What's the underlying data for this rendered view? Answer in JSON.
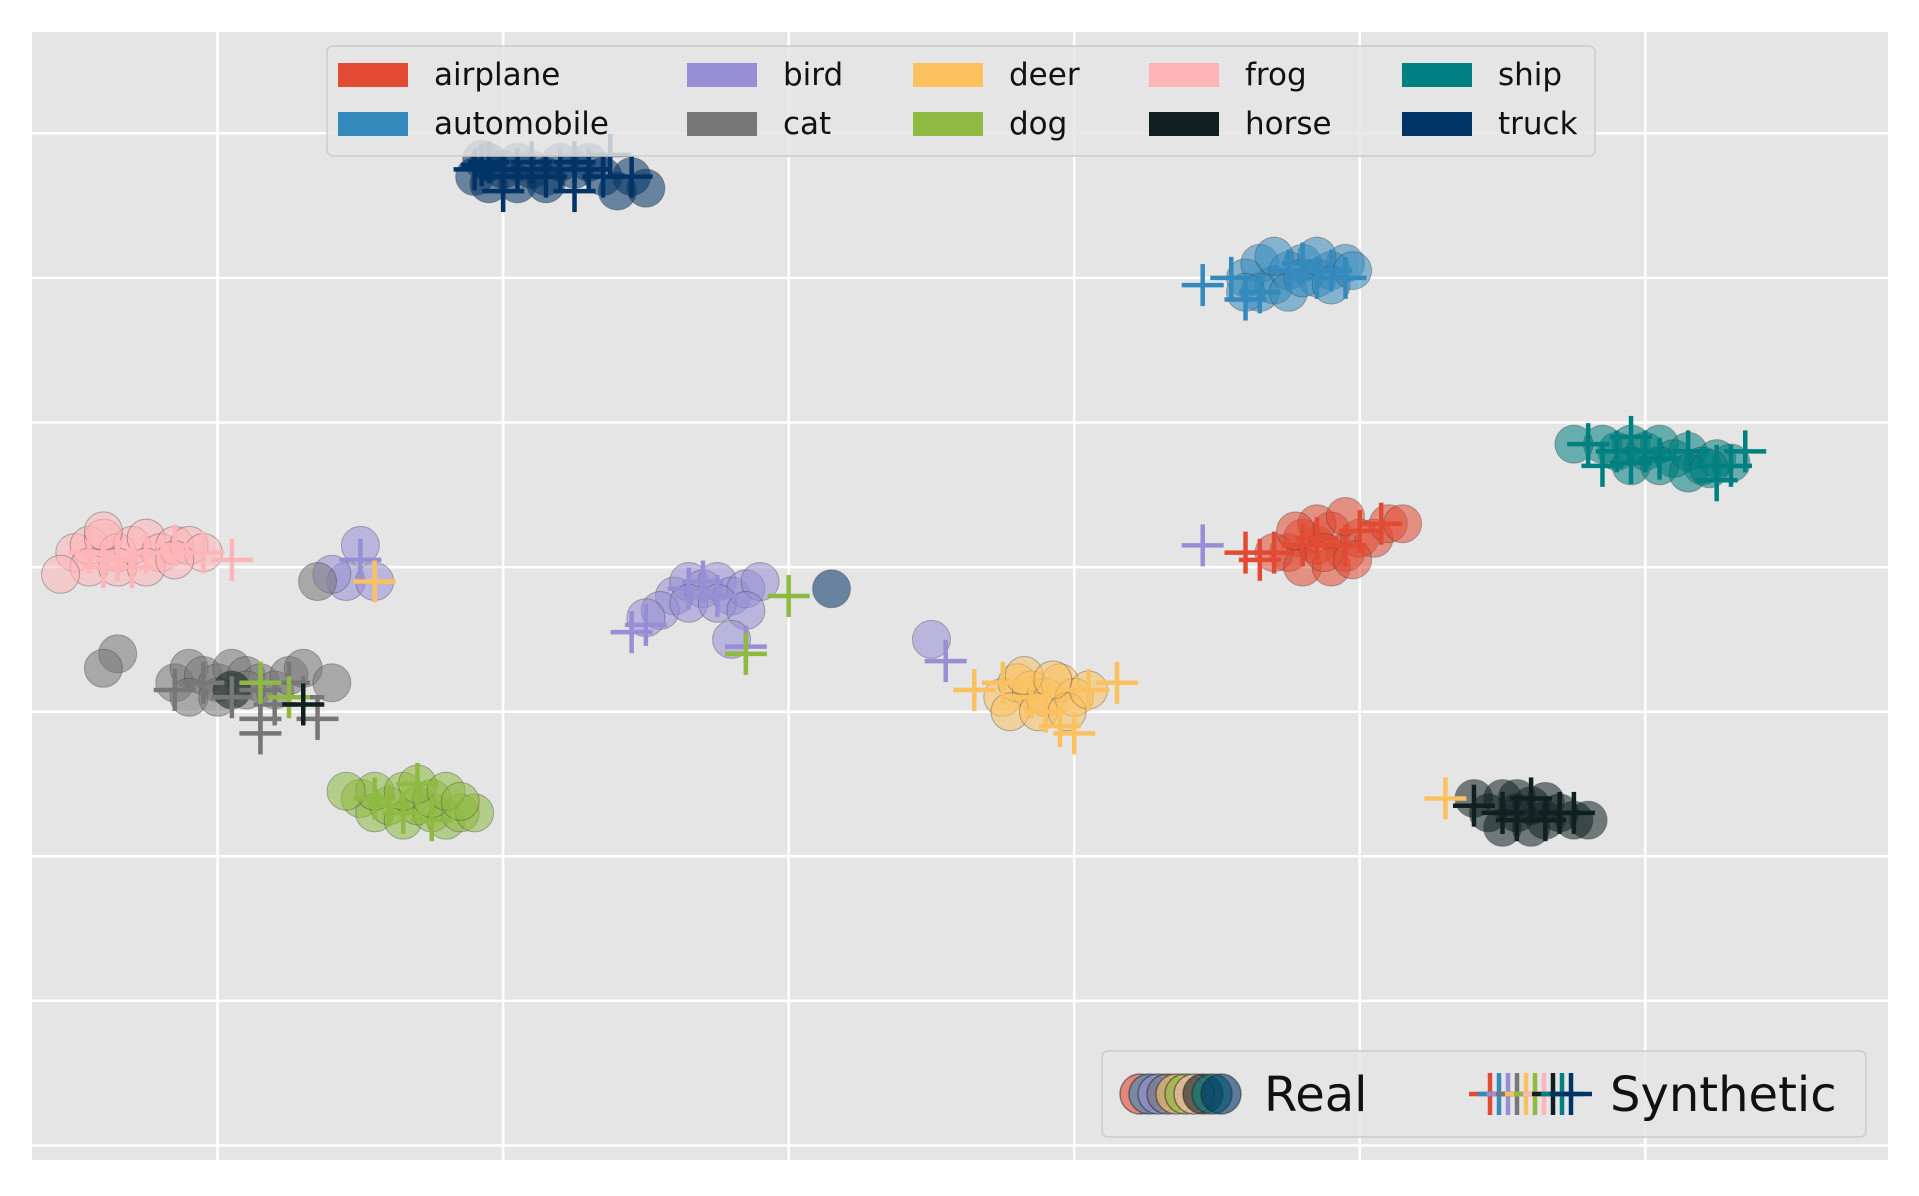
{
  "chart_data": {
    "type": "scatter",
    "title": "",
    "xlabel": "",
    "ylabel": "",
    "xlim": [
      -30,
      100
    ],
    "ylim": [
      -30,
      48
    ],
    "x_ticks": [
      -17,
      3,
      23,
      43,
      63,
      83
    ],
    "y_ticks": [
      -29,
      -19,
      -9,
      1,
      11,
      21,
      31,
      41
    ],
    "tick_labels_shown": false,
    "grid": true,
    "background_color": "#e5e5e5",
    "grid_color": "#ffffff",
    "class_legend": {
      "placement": "upper-center",
      "columns": 5,
      "entries": [
        {
          "label": "airplane",
          "color": "#e24a33"
        },
        {
          "label": "automobile",
          "color": "#348abd"
        },
        {
          "label": "bird",
          "color": "#988ed5"
        },
        {
          "label": "cat",
          "color": "#777777"
        },
        {
          "label": "deer",
          "color": "#fbc15e"
        },
        {
          "label": "dog",
          "color": "#8eba42"
        },
        {
          "label": "frog",
          "color": "#ffb5b8"
        },
        {
          "label": "horse",
          "color": "#102020"
        },
        {
          "label": "ship",
          "color": "#008080"
        },
        {
          "label": "truck",
          "color": "#003366"
        }
      ]
    },
    "marker_legend": {
      "placement": "lower-right",
      "entries": [
        {
          "label": "Real",
          "marker": "circle"
        },
        {
          "label": "Synthetic",
          "marker": "plus"
        }
      ]
    },
    "series": [
      {
        "name": "airplane",
        "color": "#e24a33",
        "real": [
          [
            58,
            12
          ],
          [
            59,
            13
          ],
          [
            60,
            12.5
          ],
          [
            61,
            13.5
          ],
          [
            62,
            12
          ],
          [
            63,
            13
          ],
          [
            57,
            12
          ],
          [
            59,
            11
          ],
          [
            60,
            14
          ],
          [
            61,
            11
          ],
          [
            62,
            14.5
          ],
          [
            64,
            13
          ],
          [
            65,
            14
          ],
          [
            58.5,
            13.5
          ],
          [
            60.5,
            12
          ],
          [
            62.5,
            11.5
          ],
          [
            66,
            14
          ]
        ],
        "synthetic": [
          [
            57,
            12
          ],
          [
            59,
            12.5
          ],
          [
            60,
            13
          ],
          [
            62,
            12.5
          ],
          [
            55,
            12
          ],
          [
            56,
            11.5
          ],
          [
            63,
            13.5
          ],
          [
            64.5,
            14
          ]
        ]
      },
      {
        "name": "automobile",
        "color": "#348abd",
        "real": [
          [
            55,
            31
          ],
          [
            56,
            32
          ],
          [
            57,
            30.5
          ],
          [
            58,
            31.5
          ],
          [
            59,
            32
          ],
          [
            60,
            31
          ],
          [
            61,
            31.5
          ],
          [
            62,
            32
          ],
          [
            56,
            30
          ],
          [
            57,
            32.5
          ],
          [
            58,
            30
          ],
          [
            59,
            31
          ],
          [
            60,
            32.5
          ],
          [
            55,
            30
          ],
          [
            61,
            30.5
          ],
          [
            62.5,
            31.5
          ]
        ],
        "synthetic": [
          [
            52,
            30.5
          ],
          [
            54,
            31
          ],
          [
            56,
            30
          ],
          [
            58,
            31.5
          ],
          [
            59,
            32
          ],
          [
            60,
            31
          ],
          [
            61,
            31.5
          ],
          [
            62,
            31
          ],
          [
            55,
            29.5
          ]
        ]
      },
      {
        "name": "bird",
        "color": "#988ed5",
        "real": [
          [
            15,
            9
          ],
          [
            16,
            10
          ],
          [
            17,
            9.5
          ],
          [
            18,
            10
          ],
          [
            19,
            9
          ],
          [
            20,
            9.5
          ],
          [
            21,
            10
          ],
          [
            14,
            8
          ],
          [
            16,
            8.5
          ],
          [
            18,
            8.5
          ],
          [
            20,
            8
          ],
          [
            13,
            7.5
          ],
          [
            19,
            6
          ],
          [
            -7,
            12.5
          ],
          [
            -8,
            10
          ],
          [
            -9,
            10.5
          ],
          [
            33,
            6
          ],
          [
            -6,
            10
          ]
        ],
        "synthetic": [
          [
            16,
            9.5
          ],
          [
            17,
            10
          ],
          [
            18,
            9
          ],
          [
            13,
            7
          ],
          [
            12,
            6.5
          ],
          [
            -7,
            11.5
          ],
          [
            20,
            5.5
          ],
          [
            34,
            4.5
          ],
          [
            52,
            12.5
          ]
        ]
      },
      {
        "name": "cat",
        "color": "#777777",
        "real": [
          [
            -20,
            3
          ],
          [
            -19,
            4
          ],
          [
            -18,
            3.5
          ],
          [
            -17,
            3
          ],
          [
            -16,
            4
          ],
          [
            -15,
            3.5
          ],
          [
            -14,
            3
          ],
          [
            -13,
            2.5
          ],
          [
            -12,
            3.5
          ],
          [
            -11,
            4
          ],
          [
            -19,
            2
          ],
          [
            -17,
            2
          ],
          [
            -15,
            2.5
          ],
          [
            -9,
            3
          ],
          [
            -24,
            5
          ],
          [
            -25,
            4
          ],
          [
            -10,
            10
          ]
        ],
        "synthetic": [
          [
            -20,
            2.5
          ],
          [
            -18,
            3
          ],
          [
            -16,
            2
          ],
          [
            -14,
            2.5
          ],
          [
            -12,
            3
          ],
          [
            -13,
            1.5
          ],
          [
            -14,
            0.5
          ],
          [
            -14,
            -0.5
          ],
          [
            -10,
            0.5
          ],
          [
            -11,
            2
          ]
        ]
      },
      {
        "name": "deer",
        "color": "#fbc15e",
        "real": [
          [
            38,
            2
          ],
          [
            39,
            3
          ],
          [
            40,
            2.5
          ],
          [
            41,
            2
          ],
          [
            42,
            3
          ],
          [
            43,
            2
          ],
          [
            38.5,
            1
          ],
          [
            40.5,
            1
          ],
          [
            42.5,
            1
          ],
          [
            44,
            2.5
          ],
          [
            39.5,
            3.5
          ],
          [
            41.5,
            3.2
          ]
        ],
        "synthetic": [
          [
            36,
            2.5
          ],
          [
            38,
            3
          ],
          [
            40,
            2
          ],
          [
            41,
            1
          ],
          [
            42,
            0
          ],
          [
            43,
            -0.5
          ],
          [
            44,
            2.5
          ],
          [
            46,
            3
          ],
          [
            -6,
            10
          ],
          [
            69,
            -5
          ]
        ]
      },
      {
        "name": "dog",
        "color": "#8eba42",
        "real": [
          [
            -7,
            -5
          ],
          [
            -6,
            -6
          ],
          [
            -5,
            -5.5
          ],
          [
            -4,
            -6.5
          ],
          [
            -3,
            -5.5
          ],
          [
            -2,
            -6
          ],
          [
            -1,
            -6.5
          ],
          [
            0,
            -6
          ],
          [
            1,
            -6
          ],
          [
            -6,
            -4.5
          ],
          [
            -4,
            -4.5
          ],
          [
            -2,
            -5
          ],
          [
            -3,
            -4
          ],
          [
            -8,
            -4.5
          ],
          [
            -1,
            -4.5
          ],
          [
            0,
            -5.2
          ]
        ],
        "synthetic": [
          [
            -6,
            -5
          ],
          [
            -4,
            -6
          ],
          [
            -3,
            -4
          ],
          [
            -2,
            -6.5
          ],
          [
            -5,
            -5.5
          ],
          [
            -14,
            3
          ],
          [
            -12,
            2
          ],
          [
            23,
            9
          ],
          [
            20,
            5
          ]
        ]
      },
      {
        "name": "frog",
        "color": "#ffb5b8",
        "real": [
          [
            -27,
            12
          ],
          [
            -26,
            12.5
          ],
          [
            -25,
            13
          ],
          [
            -24,
            12
          ],
          [
            -23,
            12.5
          ],
          [
            -22,
            13
          ],
          [
            -21,
            12
          ],
          [
            -20,
            12.5
          ],
          [
            -19,
            12.5
          ],
          [
            -18,
            12
          ],
          [
            -26,
            11
          ],
          [
            -24,
            11
          ],
          [
            -22,
            11
          ],
          [
            -20,
            11.5
          ],
          [
            -28,
            10.5
          ],
          [
            -25,
            13.5
          ]
        ],
        "synthetic": [
          [
            -26,
            12
          ],
          [
            -24,
            11.5
          ],
          [
            -22,
            12
          ],
          [
            -20,
            12.5
          ],
          [
            -18,
            12
          ],
          [
            -25,
            11
          ],
          [
            -23,
            11
          ],
          [
            -16,
            11.5
          ]
        ]
      },
      {
        "name": "horse",
        "color": "#102020",
        "real": [
          [
            72,
            -6
          ],
          [
            73,
            -5
          ],
          [
            74,
            -6
          ],
          [
            75,
            -5.5
          ],
          [
            76,
            -6.5
          ],
          [
            77,
            -6
          ],
          [
            78,
            -6.5
          ],
          [
            71,
            -5
          ],
          [
            73,
            -7
          ],
          [
            75,
            -7
          ],
          [
            74,
            -5
          ],
          [
            79,
            -6.5
          ],
          [
            76,
            -5.2
          ],
          [
            -16,
            2.5
          ]
        ],
        "synthetic": [
          [
            71,
            -5.5
          ],
          [
            73,
            -6
          ],
          [
            74,
            -6.5
          ],
          [
            75,
            -5
          ],
          [
            76,
            -6.5
          ],
          [
            77,
            -6
          ],
          [
            78,
            -6
          ],
          [
            -11,
            1.5
          ]
        ]
      },
      {
        "name": "ship",
        "color": "#008080",
        "real": [
          [
            81,
            19
          ],
          [
            82,
            19.5
          ],
          [
            83,
            19
          ],
          [
            84,
            19.5
          ],
          [
            85,
            18.5
          ],
          [
            86,
            19
          ],
          [
            87,
            18
          ],
          [
            88,
            18.5
          ],
          [
            89,
            18.2
          ],
          [
            80,
            19.5
          ],
          [
            78,
            19.5
          ],
          [
            82,
            18
          ],
          [
            84,
            18
          ],
          [
            86,
            17.5
          ],
          [
            87.5,
            17.8
          ]
        ],
        "synthetic": [
          [
            79,
            19.5
          ],
          [
            81,
            19
          ],
          [
            82,
            20
          ],
          [
            83,
            19
          ],
          [
            84,
            18.5
          ],
          [
            86,
            19
          ],
          [
            88,
            18
          ],
          [
            89,
            18
          ],
          [
            90,
            19
          ],
          [
            80,
            18
          ],
          [
            82,
            18.2
          ],
          [
            88,
            17
          ]
        ]
      },
      {
        "name": "truck",
        "color": "#003366",
        "real": [
          [
            1,
            38
          ],
          [
            2,
            39
          ],
          [
            3,
            38.5
          ],
          [
            4,
            39
          ],
          [
            5,
            38.5
          ],
          [
            6,
            38
          ],
          [
            7,
            39
          ],
          [
            8,
            38.5
          ],
          [
            2,
            37.5
          ],
          [
            4,
            37.5
          ],
          [
            6,
            37.5
          ],
          [
            9,
            39
          ],
          [
            10,
            38
          ],
          [
            11,
            37
          ],
          [
            12,
            38
          ],
          [
            1.5,
            39.2
          ],
          [
            13,
            37.2
          ],
          [
            26,
            9.5
          ]
        ],
        "synthetic": [
          [
            1,
            38.5
          ],
          [
            2,
            39
          ],
          [
            3,
            38
          ],
          [
            4,
            38.5
          ],
          [
            5,
            39
          ],
          [
            6,
            38
          ],
          [
            7,
            38.5
          ],
          [
            8,
            39
          ],
          [
            9,
            38.5
          ],
          [
            3,
            37
          ],
          [
            8,
            37
          ],
          [
            10,
            38
          ],
          [
            12,
            38
          ],
          [
            1.5,
            38.8
          ],
          [
            10.5,
            39.5
          ]
        ]
      }
    ]
  }
}
